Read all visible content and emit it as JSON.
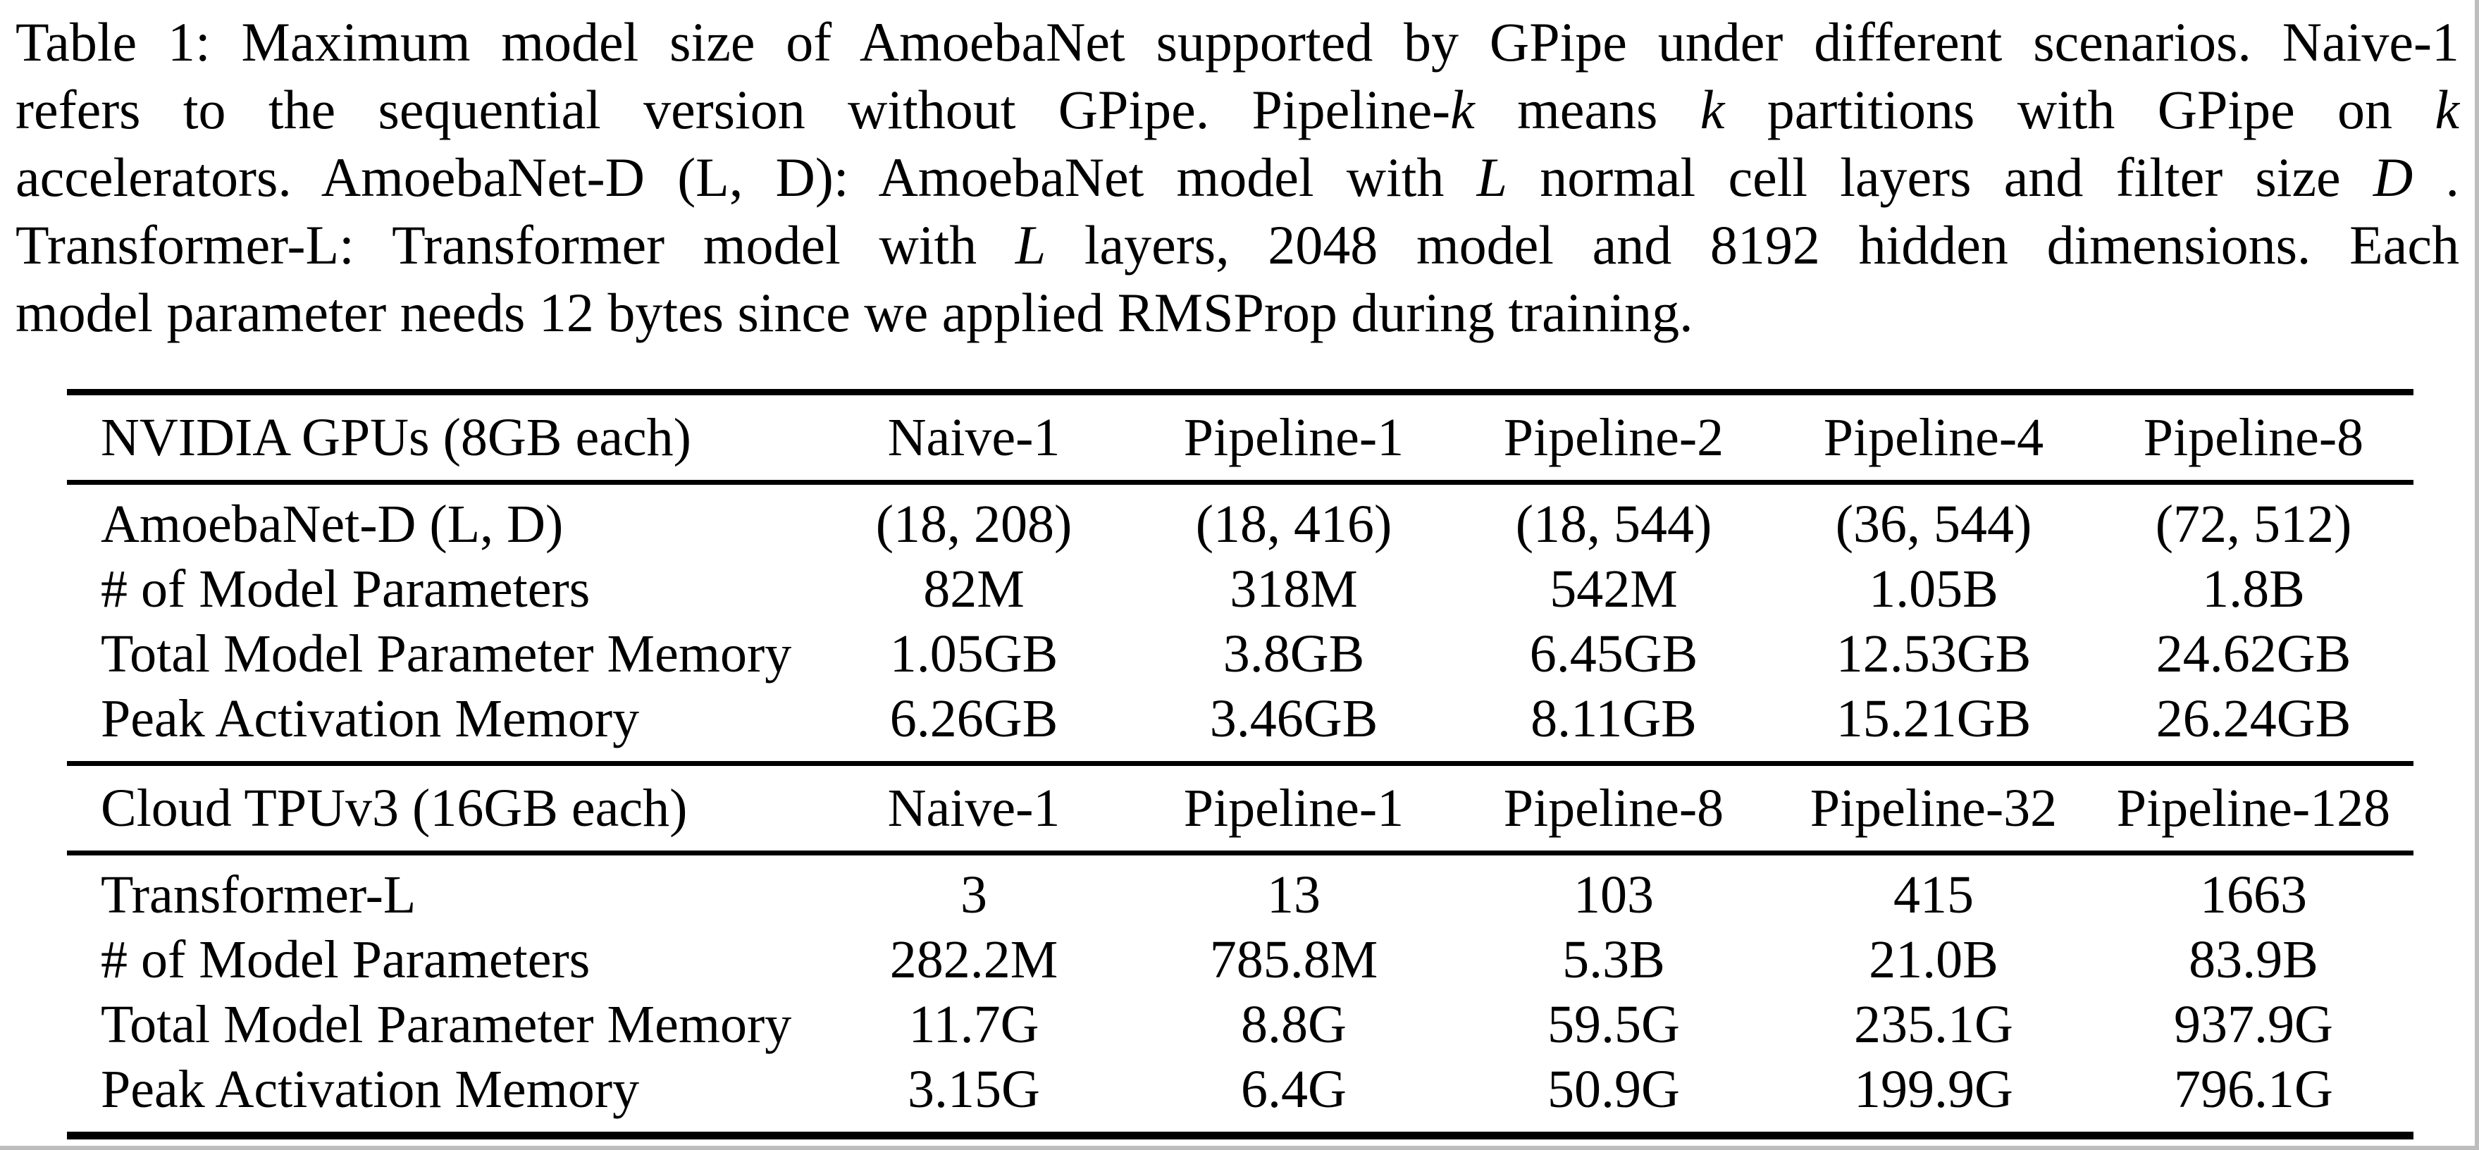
{
  "caption": {
    "lines": [
      {
        "segs": [
          {
            "t": "Table 1: Maximum model size of AmoebaNet supported by GPipe under different scenarios. Naive-1"
          }
        ]
      },
      {
        "segs": [
          {
            "t": "refers to the sequential version without GPipe.  Pipeline-"
          },
          {
            "t": "k"
          },
          {
            "t": " means "
          },
          {
            "t": "k"
          },
          {
            "t": " partitions with GPipe on "
          },
          {
            "t": "k"
          }
        ]
      },
      {
        "segs": [
          {
            "t": "accelerators. AmoebaNet-D (L, D): AmoebaNet model with "
          },
          {
            "t": "L"
          },
          {
            "t": " normal cell layers and filter size "
          },
          {
            "t": "D"
          },
          {
            "t": " ."
          }
        ]
      },
      {
        "segs": [
          {
            "t": "Transformer-L: Transformer model with "
          },
          {
            "t": "L"
          },
          {
            "t": " layers, 2048 model and 8192 hidden dimensions. Each"
          }
        ]
      },
      {
        "segs": [
          {
            "t": "model parameter needs 12 bytes since we applied RMSProp during training."
          }
        ]
      }
    ]
  },
  "table": {
    "gpu_section": {
      "header": {
        "label": "NVIDIA GPUs (8GB each)",
        "cols": [
          "Naive-1",
          "Pipeline-1",
          "Pipeline-2",
          "Pipeline-4",
          "Pipeline-8"
        ]
      },
      "rows": [
        {
          "label": "AmoebaNet-D (L, D)",
          "values": [
            "(18, 208)",
            "(18, 416)",
            "(18, 544)",
            "(36, 544)",
            "(72, 512)"
          ]
        },
        {
          "label": "# of Model Parameters",
          "values": [
            "82M",
            "318M",
            "542M",
            "1.05B",
            "1.8B"
          ]
        },
        {
          "label": "Total Model Parameter Memory",
          "values": [
            "1.05GB",
            "3.8GB",
            "6.45GB",
            "12.53GB",
            "24.62GB"
          ]
        },
        {
          "label": "Peak Activation Memory",
          "values": [
            "6.26GB",
            "3.46GB",
            "8.11GB",
            "15.21GB",
            "26.24GB"
          ]
        }
      ]
    },
    "tpu_section": {
      "header": {
        "label": "Cloud TPUv3 (16GB each)",
        "cols": [
          "Naive-1",
          "Pipeline-1",
          "Pipeline-8",
          "Pipeline-32",
          "Pipeline-128"
        ]
      },
      "rows": [
        {
          "label": "Transformer-L",
          "values": [
            "3",
            "13",
            "103",
            "415",
            "1663"
          ]
        },
        {
          "label": "# of Model Parameters",
          "values": [
            "282.2M",
            "785.8M",
            "5.3B",
            "21.0B",
            "83.9B"
          ]
        },
        {
          "label": "Total Model Parameter Memory",
          "values": [
            "11.7G",
            "8.8G",
            "59.5G",
            "235.1G",
            "937.9G"
          ]
        },
        {
          "label": "Peak Activation Memory",
          "values": [
            "3.15G",
            "6.4G",
            "50.9G",
            "199.9G",
            "796.1G"
          ]
        }
      ]
    }
  }
}
